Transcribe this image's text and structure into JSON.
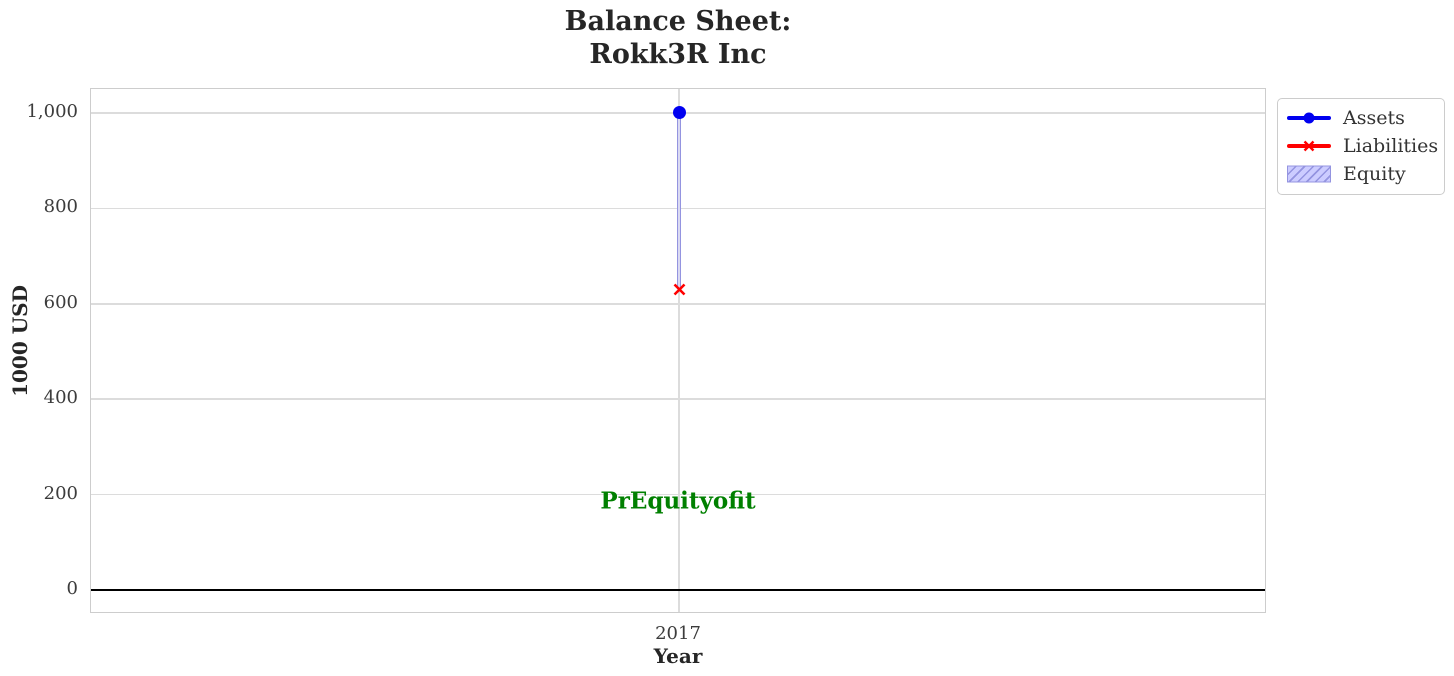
{
  "title": {
    "line1": "Balance Sheet:",
    "line2": "Rokk3R Inc"
  },
  "axes": {
    "xlabel": "Year",
    "ylabel": "1000 USD",
    "x_tick_labels": [
      "2017"
    ],
    "y_tick_labels": [
      "0",
      "200",
      "400",
      "600",
      "800",
      "1,000"
    ]
  },
  "legend": {
    "items": [
      {
        "label": "Assets",
        "swatch": "blue-line-circle-marker",
        "color": "#0000f0"
      },
      {
        "label": "Liabilities",
        "swatch": "red-line-x-marker",
        "color": "#ff0000"
      },
      {
        "label": "Equity",
        "swatch": "lavender-hatched-patch",
        "fill": "#ccccff",
        "edge": "#9494e0",
        "hatch": "///"
      }
    ]
  },
  "annotation": {
    "text": "PrEquityofit",
    "color": "#008000",
    "x": "2017",
    "y": 185
  },
  "colors": {
    "assets": "#0000f0",
    "liabilities": "#ff0000",
    "equity_fill": "#ccccff",
    "equity_edge": "#9494e0",
    "annotation_green": "#008000",
    "grid": "#dcdcdc",
    "zero_line": "#000000",
    "text_dark": "#262626"
  },
  "chart_data": {
    "type": "line",
    "title": "Balance Sheet:\nRokk3R Inc",
    "xlabel": "Year",
    "ylabel": "1000 USD",
    "x": [
      "2017"
    ],
    "series": [
      {
        "name": "Assets",
        "type": "line",
        "marker": "circle",
        "color": "#0000f0",
        "values": [
          1000
        ]
      },
      {
        "name": "Liabilities",
        "type": "line",
        "marker": "x",
        "color": "#ff0000",
        "values": [
          630
        ]
      },
      {
        "name": "Equity",
        "type": "area-band",
        "fill": "#ccccff",
        "edge": "#9494e0",
        "hatch": "///",
        "lower": [
          630
        ],
        "upper": [
          1000
        ]
      }
    ],
    "y_ticks": [
      {
        "label": "0",
        "value": 0
      },
      {
        "label": "200",
        "value": 200
      },
      {
        "label": "400",
        "value": 400
      },
      {
        "label": "600",
        "value": 600
      },
      {
        "label": "800",
        "value": 800
      },
      {
        "label": "1,000",
        "value": 1000
      }
    ],
    "ylim": [
      -50,
      1050
    ],
    "grid": true,
    "zero_line": true,
    "legend_position": "outside upper right",
    "annotation": {
      "text": "PrEquityofit",
      "color": "#008000",
      "x": "2017",
      "y": 185
    }
  }
}
